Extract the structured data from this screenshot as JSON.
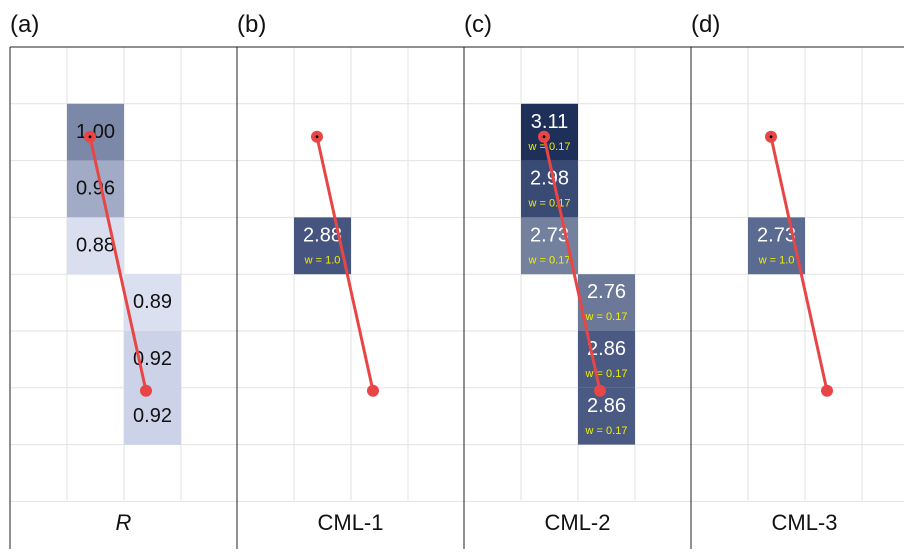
{
  "panels": [
    {
      "letter": "(a)",
      "label": "R",
      "label_italic": true,
      "cells": [
        {
          "col": 1,
          "row": 1,
          "value": "1.00",
          "weight": null,
          "fill": "#7c88a8"
        },
        {
          "col": 1,
          "row": 2,
          "value": "0.96",
          "weight": null,
          "fill": "#a1abc6"
        },
        {
          "col": 1,
          "row": 3,
          "value": "0.88",
          "weight": null,
          "fill": "#dadff0"
        },
        {
          "col": 2,
          "row": 4,
          "value": "0.89",
          "weight": null,
          "fill": "#dbe0f1"
        },
        {
          "col": 2,
          "row": 5,
          "value": "0.92",
          "weight": null,
          "fill": "#ccd3e9"
        },
        {
          "col": 2,
          "row": 6,
          "value": "0.92",
          "weight": null,
          "fill": "#ccd3e9"
        }
      ],
      "line": {
        "from": {
          "col": 1,
          "row": 1
        },
        "to": {
          "col": 2,
          "row": 6
        }
      }
    },
    {
      "letter": "(b)",
      "label": "CML-1",
      "label_italic": false,
      "cells": [
        {
          "col": 1,
          "row": 3,
          "value": "2.88",
          "weight": "w = 1.0",
          "fill": "#46557f"
        }
      ],
      "line": {
        "from": {
          "col": 1,
          "row": 1
        },
        "to": {
          "col": 2,
          "row": 6
        }
      }
    },
    {
      "letter": "(c)",
      "label": "CML-2",
      "label_italic": false,
      "cells": [
        {
          "col": 1,
          "row": 1,
          "value": "3.11",
          "weight": "w = 0.17",
          "fill": "#1e2f5a"
        },
        {
          "col": 1,
          "row": 2,
          "value": "2.98",
          "weight": "w = 0.17",
          "fill": "#394a74"
        },
        {
          "col": 1,
          "row": 3,
          "value": "2.73",
          "weight": "w = 0.17",
          "fill": "#73819f"
        },
        {
          "col": 2,
          "row": 4,
          "value": "2.76",
          "weight": "w = 0.17",
          "fill": "#6b7898"
        },
        {
          "col": 2,
          "row": 5,
          "value": "2.86",
          "weight": "w = 0.17",
          "fill": "#4a5a83"
        },
        {
          "col": 2,
          "row": 6,
          "value": "2.86",
          "weight": "w = 0.17",
          "fill": "#4a5a83"
        }
      ],
      "line": {
        "from": {
          "col": 1,
          "row": 1
        },
        "to": {
          "col": 2,
          "row": 6
        }
      }
    },
    {
      "letter": "(d)",
      "label": "CML-3",
      "label_italic": false,
      "cells": [
        {
          "col": 1,
          "row": 3,
          "value": "2.73",
          "weight": "w = 1.0",
          "fill": "#5b6a91"
        }
      ],
      "line": {
        "from": {
          "col": 1,
          "row": 1
        },
        "to": {
          "col": 2,
          "row": 6
        }
      }
    }
  ],
  "colors": {
    "line": "#e84646",
    "grid": "#e2e2e2",
    "border": "#222222",
    "weight_text": "#f0f000",
    "dark_text": "#111111",
    "light_text": "#ffffff"
  }
}
